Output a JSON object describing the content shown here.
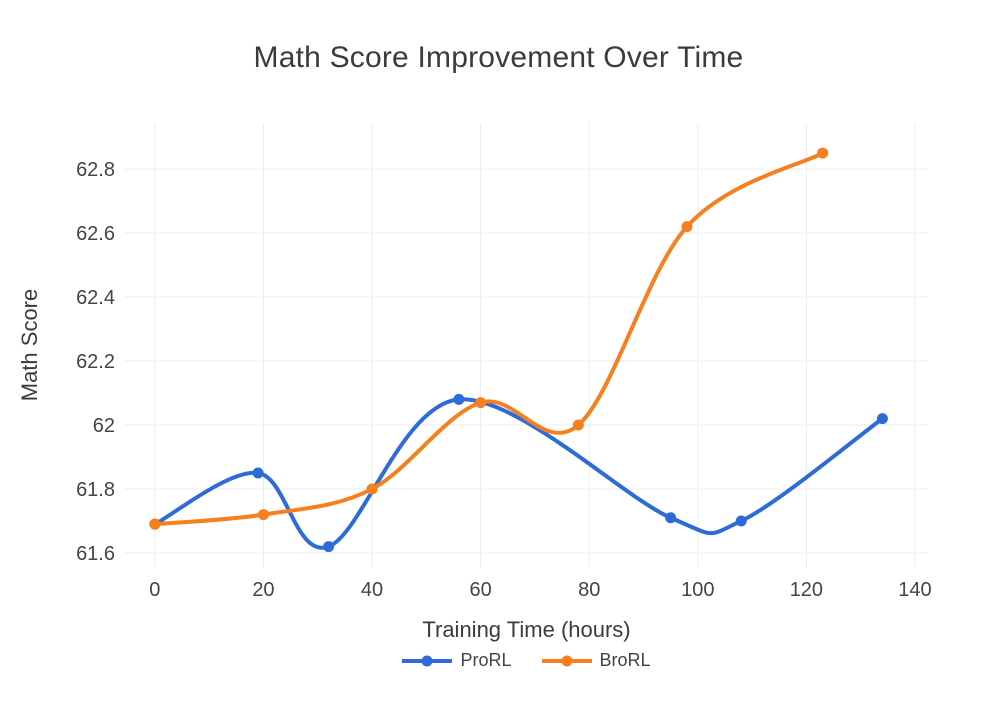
{
  "page": {
    "background": "#ffffff"
  },
  "chart_data": {
    "type": "line",
    "title": "Math Score Improvement Over Time",
    "xlabel": "Training Time (hours)",
    "ylabel": "Math Score",
    "xlim": [
      -5.5,
      142.4
    ],
    "ylim": [
      61.553,
      62.944
    ],
    "xticks": [
      0,
      20,
      40,
      60,
      80,
      100,
      120,
      140
    ],
    "yticks": [
      61.6,
      61.8,
      62,
      62.2,
      62.4,
      62.6,
      62.8
    ],
    "grid": true,
    "grid_color": "#ececec",
    "tick_text_color": "#444444",
    "title_text_color": "#3b3b3b",
    "line_shape": "spline",
    "line_width": 4,
    "marker_radius": 5.5,
    "legend_position": "bottom-center",
    "series": [
      {
        "name": "ProRL",
        "color": "#2e6bd9",
        "x": [
          0,
          19,
          32,
          56,
          95,
          108,
          134
        ],
        "y": [
          61.69,
          61.85,
          61.62,
          62.08,
          61.71,
          61.7,
          62.02
        ]
      },
      {
        "name": "BroRL",
        "color": "#f7801e",
        "x": [
          0,
          20,
          40,
          60,
          78,
          98,
          123
        ],
        "y": [
          61.69,
          61.72,
          61.8,
          62.07,
          62.0,
          62.62,
          62.85
        ]
      }
    ]
  }
}
